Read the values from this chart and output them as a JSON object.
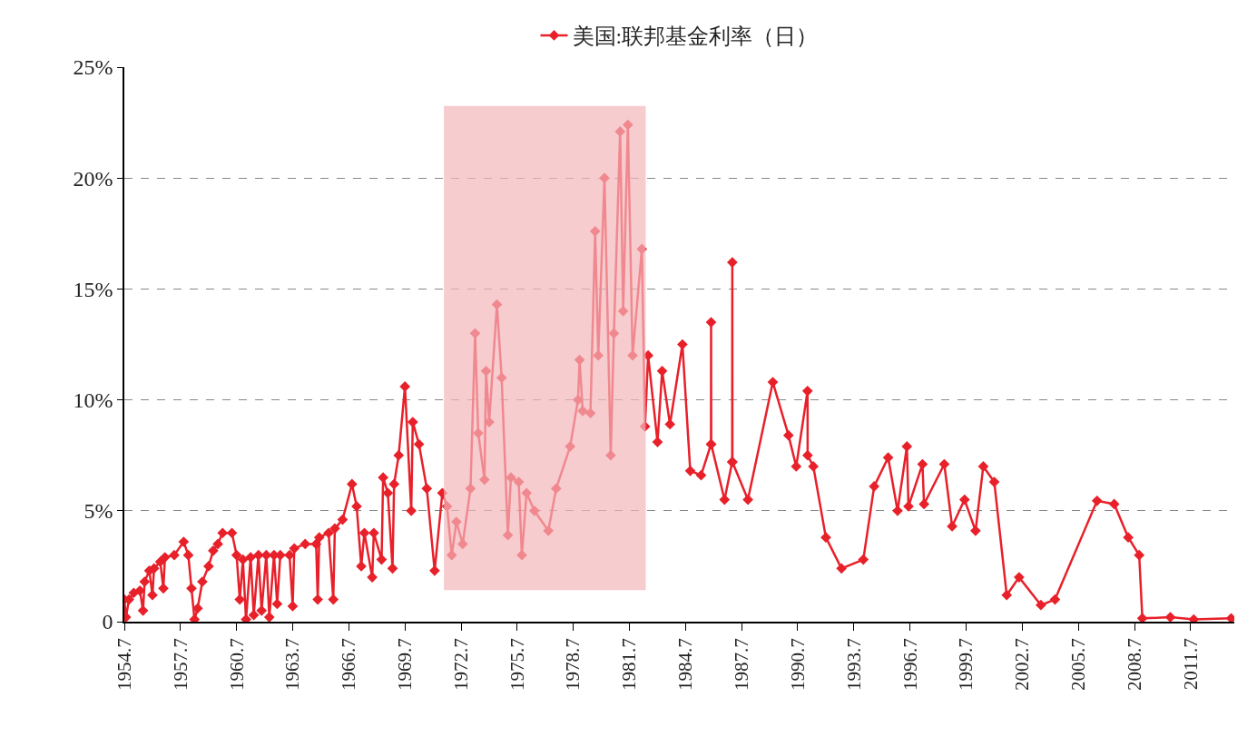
{
  "chart_data": {
    "type": "line",
    "legend": "top",
    "marker": "diamond",
    "line_style": "solid",
    "grid": "y",
    "x": [
      "1954-07-01",
      "1954-08-01",
      "1954-10-01",
      "1955-01-01",
      "1955-05-01",
      "1955-07-01",
      "1955-08-01",
      "1955-11-01",
      "1956-01-01",
      "1956-02-01",
      "1956-06-01",
      "1956-08-01",
      "1956-09-01",
      "1957-03-01",
      "1957-09-01",
      "1957-12-01",
      "1958-02-01",
      "1958-04-01",
      "1958-06-01",
      "1958-09-01",
      "1959-01-01",
      "1959-04-01",
      "1959-07-01",
      "1959-10-01",
      "1960-04-01",
      "1960-07-01",
      "1960-09-01",
      "1960-11-01",
      "1961-01-01",
      "1961-04-01",
      "1961-06-01",
      "1961-09-01",
      "1961-11-01",
      "1962-02-01",
      "1962-04-01",
      "1962-07-01",
      "1962-09-01",
      "1962-11-01",
      "1963-05-01",
      "1963-07-01",
      "1963-08-01",
      "1964-03-01",
      "1964-10-01",
      "1964-11-01",
      "1964-12-01",
      "1965-06-01",
      "1965-09-01",
      "1965-10-01",
      "1966-03-01",
      "1966-09-01",
      "1966-12-01",
      "1967-03-01",
      "1967-05-01",
      "1967-10-01",
      "1967-11-01",
      "1968-04-01",
      "1968-05-01",
      "1968-08-01",
      "1968-11-01",
      "1968-12-01",
      "1969-03-01",
      "1969-07-01",
      "1969-11-01",
      "1969-12-01",
      "1970-04-01",
      "1970-09-01",
      "1971-02-01",
      "1971-07-01",
      "1971-10-01",
      "1972-01-01",
      "1972-04-01",
      "1972-08-01",
      "1973-01-01",
      "1973-04-01",
      "1973-06-01",
      "1973-10-01",
      "1973-11-01",
      "1974-01-01",
      "1974-06-01",
      "1974-09-01",
      "1975-01-01",
      "1975-03-01",
      "1975-08-01",
      "1975-10-01",
      "1976-01-01",
      "1976-06-01",
      "1977-03-01",
      "1977-08-01",
      "1978-05-01",
      "1978-10-01",
      "1978-11-01",
      "1979-01-01",
      "1979-06-01",
      "1979-09-01",
      "1979-11-01",
      "1980-03-01",
      "1980-07-01",
      "1980-09-01",
      "1981-01-01",
      "1981-03-01",
      "1981-06-01",
      "1981-09-01",
      "1982-03-01",
      "1982-05-01",
      "1982-07-01",
      "1983-01-01",
      "1983-04-01",
      "1983-09-01",
      "1984-05-01",
      "1984-10-01",
      "1985-05-01",
      "1985-11-10",
      "1985-11-12",
      "1985-11-14",
      "1986-08-01",
      "1986-12-29",
      "1986-12-31",
      "1987-01-02",
      "1987-11-01",
      "1989-03-01",
      "1990-01-01",
      "1990-06-01",
      "1991-01-08",
      "1991-01-10",
      "1991-05-01",
      "1992-01-01",
      "1992-11-01",
      "1994-01-01",
      "1994-08-01",
      "1995-05-01",
      "1995-11-01",
      "1996-05-01",
      "1996-06-01",
      "1997-03-01",
      "1997-04-01",
      "1998-05-01",
      "1998-10-01",
      "1999-06-01",
      "2000-01-01",
      "2000-06-01",
      "2001-01-01",
      "2001-09-01",
      "2002-05-01",
      "2003-07-01",
      "2004-04-01",
      "2006-07-01",
      "2007-06-01",
      "2008-03-01",
      "2008-10-01",
      "2008-12-01",
      "2010-06-01",
      "2011-09-01",
      "2013-09-01"
    ],
    "series": [
      {
        "name": "美国:联邦基金利率（日）",
        "color": "#e8202a",
        "values": [
          1.0,
          0.2,
          1.0,
          1.3,
          1.4,
          0.5,
          1.8,
          2.3,
          1.2,
          2.4,
          2.7,
          1.5,
          2.9,
          3.0,
          3.6,
          3.0,
          1.5,
          0.1,
          0.6,
          1.8,
          2.5,
          3.2,
          3.5,
          4.0,
          4.0,
          3.0,
          1.0,
          2.8,
          0.1,
          2.9,
          0.3,
          3.0,
          0.5,
          3.0,
          0.2,
          3.0,
          0.8,
          3.0,
          3.0,
          0.7,
          3.3,
          3.5,
          3.5,
          1.0,
          3.8,
          4.0,
          1.0,
          4.2,
          4.6,
          6.2,
          5.2,
          2.5,
          4.0,
          2.0,
          4.0,
          2.8,
          6.5,
          5.8,
          2.4,
          6.2,
          7.5,
          10.6,
          5.0,
          9.0,
          8.0,
          6.0,
          2.3,
          5.8,
          5.2,
          3.0,
          4.5,
          3.5,
          6.0,
          13.0,
          8.5,
          6.4,
          11.3,
          9.0,
          14.3,
          11.0,
          3.9,
          6.5,
          6.3,
          3.0,
          5.8,
          5.0,
          4.1,
          6.0,
          7.9,
          10.0,
          11.8,
          9.5,
          9.4,
          17.6,
          12.0,
          20.0,
          7.5,
          13.0,
          22.1,
          14.0,
          22.4,
          12.0,
          16.8,
          8.8,
          12.0,
          8.1,
          11.3,
          8.9,
          12.5,
          6.8,
          6.6,
          8.0,
          13.5,
          8.0,
          5.5,
          7.2,
          16.2,
          7.2,
          5.5,
          10.8,
          8.4,
          7.0,
          10.4,
          7.5,
          7.0,
          3.8,
          2.4,
          2.8,
          6.1,
          7.4,
          5.0,
          7.9,
          5.2,
          7.1,
          5.3,
          7.1,
          4.3,
          5.5,
          4.1,
          7.0,
          6.3,
          1.2,
          2.0,
          0.75,
          1.0,
          5.45,
          5.3,
          3.8,
          3.0,
          0.15,
          0.2,
          0.1,
          0.15
        ]
      }
    ],
    "xlim": [
      "1954-07-01",
      "2013-11-01"
    ],
    "xticks": [
      {
        "value": "1954-07",
        "label": "1954.7"
      },
      {
        "value": "1957-07",
        "label": "1957.7"
      },
      {
        "value": "1960-07",
        "label": "1960.7"
      },
      {
        "value": "1963-07",
        "label": "1963.7"
      },
      {
        "value": "1966-07",
        "label": "1966.7"
      },
      {
        "value": "1969-07",
        "label": "1969.7"
      },
      {
        "value": "1972-07",
        "label": "1972.7"
      },
      {
        "value": "1975-07",
        "label": "1975.7"
      },
      {
        "value": "1978-07",
        "label": "1978.7"
      },
      {
        "value": "1981-07",
        "label": "1981.7"
      },
      {
        "value": "1984-07",
        "label": "1984.7"
      },
      {
        "value": "1987-07",
        "label": "1987.7"
      },
      {
        "value": "1990-07",
        "label": "1990.7"
      },
      {
        "value": "1993-07",
        "label": "1993.7"
      },
      {
        "value": "1996-07",
        "label": "1996.7"
      },
      {
        "value": "1999-07",
        "label": "1999.7"
      },
      {
        "value": "2002-07",
        "label": "2002.7"
      },
      {
        "value": "2005-07",
        "label": "2005.7"
      },
      {
        "value": "2008-07",
        "label": "2008.7"
      },
      {
        "value": "2011-07",
        "label": "2011.7"
      }
    ],
    "ylim": [
      0,
      25
    ],
    "yticks": [
      0,
      {
        "value": 5,
        "label": "5%"
      },
      {
        "value": 10,
        "label": "10%"
      },
      {
        "value": 15,
        "label": "15%"
      },
      {
        "value": 20,
        "label": "20%"
      },
      {
        "value": 25,
        "label": "25%"
      }
    ],
    "bands": [
      {
        "axis": "x",
        "from": "1971-08-01",
        "to": "1982-05-15",
        "color": "#f4b6bb"
      }
    ]
  }
}
